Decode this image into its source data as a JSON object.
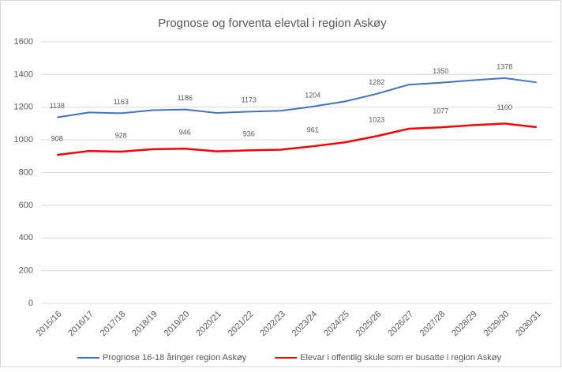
{
  "chart_data": {
    "type": "line",
    "title": "Prognose og forventa elevtal i region Askøy",
    "categories": [
      "2015/16",
      "2016/17",
      "2017/18",
      "2018/19",
      "2019/20",
      "2020/21",
      "2021/22",
      "2022/23",
      "2023/24",
      "2024/25",
      "2025/26",
      "2026/27",
      "2027/28",
      "2028/29",
      "2029/30",
      "2030/31"
    ],
    "series": [
      {
        "name": "Prognose 16-18 åringer region Askøy",
        "color": "#4472c4",
        "values": [
          1138,
          1168,
          1163,
          1182,
          1186,
          1165,
          1173,
          1178,
          1204,
          1235,
          1282,
          1338,
          1350,
          1365,
          1378,
          1352
        ],
        "value_labels": [
          1138,
          null,
          1163,
          null,
          1186,
          null,
          1173,
          null,
          1204,
          null,
          1282,
          null,
          1350,
          null,
          1378,
          null
        ]
      },
      {
        "name": "Elevar i offentlig skule som er busatte i region Askøy",
        "color": "#ff0000",
        "values": [
          908,
          932,
          928,
          943,
          946,
          930,
          936,
          940,
          961,
          985,
          1023,
          1068,
          1077,
          1090,
          1100,
          1078
        ],
        "value_labels": [
          908,
          null,
          928,
          null,
          946,
          null,
          936,
          null,
          961,
          null,
          1023,
          null,
          1077,
          null,
          1100,
          null
        ]
      }
    ],
    "ylim": [
      0,
      1600
    ],
    "yticks": [
      0,
      200,
      400,
      600,
      800,
      1000,
      1200,
      1400,
      1600
    ],
    "grid": true,
    "legend": "bottom"
  }
}
